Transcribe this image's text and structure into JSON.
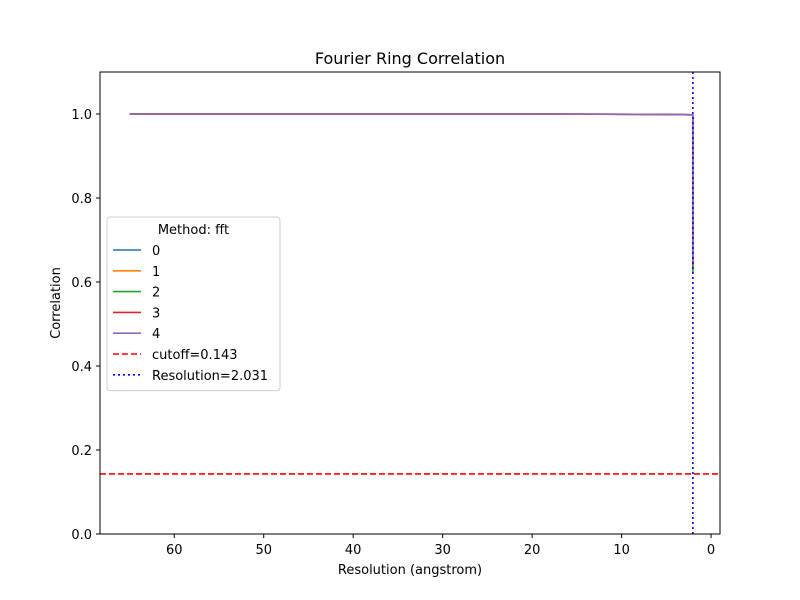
{
  "chart_data": {
    "type": "line",
    "title": "Fourier Ring Correlation",
    "xlabel": "Resolution (angstrom)",
    "ylabel": "Correlation",
    "xlim": [
      68.3,
      -1.0
    ],
    "ylim": [
      0.0,
      1.1
    ],
    "x_reversed": true,
    "xticks": [
      60,
      50,
      40,
      30,
      20,
      10,
      0
    ],
    "yticks": [
      0.0,
      0.2,
      0.4,
      0.6,
      0.8,
      1.0
    ],
    "grid": false,
    "legend": {
      "title": "Method: fft",
      "placement": "center-left"
    },
    "series": [
      {
        "name": "0",
        "color": "#1f77b4",
        "style": "solid",
        "x": [
          65.0,
          40.0,
          20.0,
          5.0,
          2.05,
          2.031,
          2.031
        ],
        "y": [
          1.0,
          1.0,
          1.0,
          0.999,
          0.998,
          0.99,
          0.63
        ]
      },
      {
        "name": "1",
        "color": "#ff7f0e",
        "style": "solid",
        "x": [
          65.0,
          40.0,
          20.0,
          5.0,
          2.05,
          2.031,
          2.031
        ],
        "y": [
          1.0,
          1.0,
          1.0,
          0.999,
          0.998,
          0.99,
          0.64
        ]
      },
      {
        "name": "2",
        "color": "#2ca02c",
        "style": "solid",
        "x": [
          65.0,
          40.0,
          20.0,
          5.0,
          2.05,
          2.031,
          2.031
        ],
        "y": [
          1.0,
          1.0,
          1.0,
          0.999,
          0.998,
          0.99,
          0.62
        ]
      },
      {
        "name": "3",
        "color": "#d62728",
        "style": "solid",
        "x": [
          65.0,
          40.0,
          20.0,
          5.0,
          2.05,
          2.031,
          2.031
        ],
        "y": [
          1.0,
          1.0,
          1.0,
          0.999,
          0.998,
          0.99,
          0.64
        ]
      },
      {
        "name": "4",
        "color": "#9467bd",
        "style": "solid",
        "x": [
          65.0,
          40.0,
          20.0,
          5.0,
          2.05,
          2.031,
          2.031
        ],
        "y": [
          1.0,
          1.0,
          1.0,
          0.999,
          0.998,
          0.99,
          0.65
        ]
      }
    ],
    "reference_lines": [
      {
        "name": "cutoff=0.143",
        "orientation": "horizontal",
        "value": 0.143,
        "color": "#ff0000",
        "style": "dashed"
      },
      {
        "name": "Resolution=2.031",
        "orientation": "vertical",
        "value": 2.031,
        "color": "#0000ff",
        "style": "dotted"
      }
    ]
  }
}
